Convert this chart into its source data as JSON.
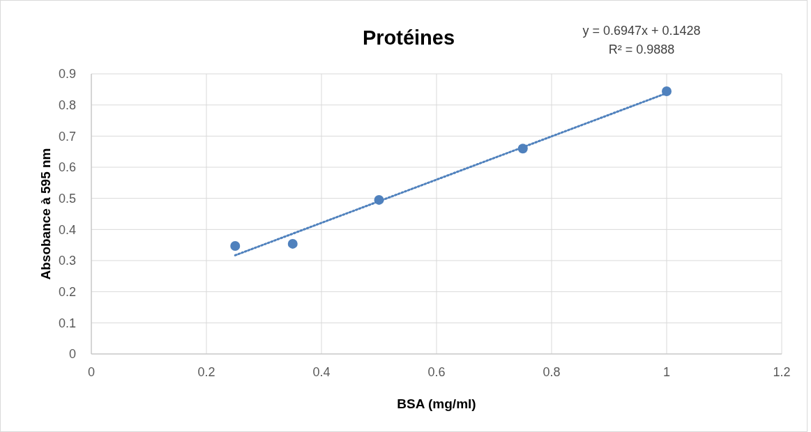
{
  "chart_data": {
    "type": "scatter",
    "title": "Protéines",
    "xlabel": "BSA (mg/ml)",
    "ylabel": "Absobance à 595 nm",
    "annotations": [
      "y = 0.6947x + 0.1428",
      "R² = 0.9888"
    ],
    "x": [
      0.25,
      0.35,
      0.5,
      0.75,
      1
    ],
    "series": [
      {
        "color": "#4f81bd",
        "values": [
          0.347,
          0.354,
          0.495,
          0.66,
          0.844
        ],
        "marker": "circle"
      },
      {
        "type": "line",
        "color": "#4f81bd",
        "x": [
          0.25,
          1
        ],
        "values": [
          0.317,
          0.838
        ],
        "line_style": "dotted",
        "marker": "none"
      }
    ],
    "xlim": [
      0,
      1.2
    ],
    "xticks": [
      0,
      0.2,
      0.4,
      0.6,
      0.8,
      1,
      1.2
    ],
    "ylim": [
      0,
      0.9
    ],
    "yticks": [
      0,
      0.1,
      0.2,
      0.3,
      0.4,
      0.5,
      0.6,
      0.7,
      0.8,
      0.9
    ],
    "grid": true
  }
}
